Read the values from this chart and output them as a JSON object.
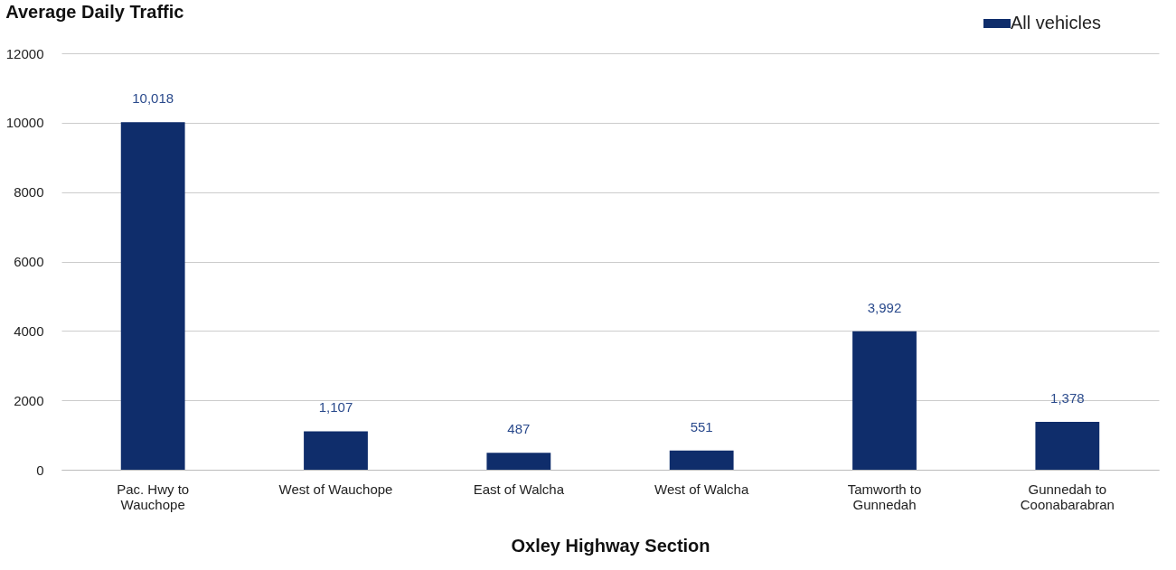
{
  "chart_data": {
    "type": "bar",
    "title": "Average Daily Traffic",
    "xlabel": "Oxley Highway Section",
    "categories": [
      "Pac. Hwy to Wauchope",
      "West of Wauchope",
      "East of Walcha",
      "West of Walcha",
      "Tamworth to Gunnedah",
      "Gunnedah to Coonabarabran"
    ],
    "series": [
      {
        "name": "All vehicles",
        "color": "#0f2d6b",
        "values": [
          10018,
          1107,
          487,
          551,
          3992,
          1378
        ],
        "value_labels": [
          "10,018",
          "1,107",
          "487",
          "551",
          "3,992",
          "1,378"
        ]
      }
    ],
    "ylim": [
      0,
      12000
    ],
    "yticks": [
      0,
      {
        "value": 2000,
        "label": "2000"
      },
      {
        "value": 4000,
        "label": "4000"
      },
      {
        "value": 6000,
        "label": "6000"
      },
      {
        "value": 8000,
        "label": "8000"
      },
      {
        "value": 10000,
        "label": "10000"
      },
      {
        "value": 12000,
        "label": "12000"
      }
    ],
    "grid": "y",
    "legend": "top right"
  }
}
